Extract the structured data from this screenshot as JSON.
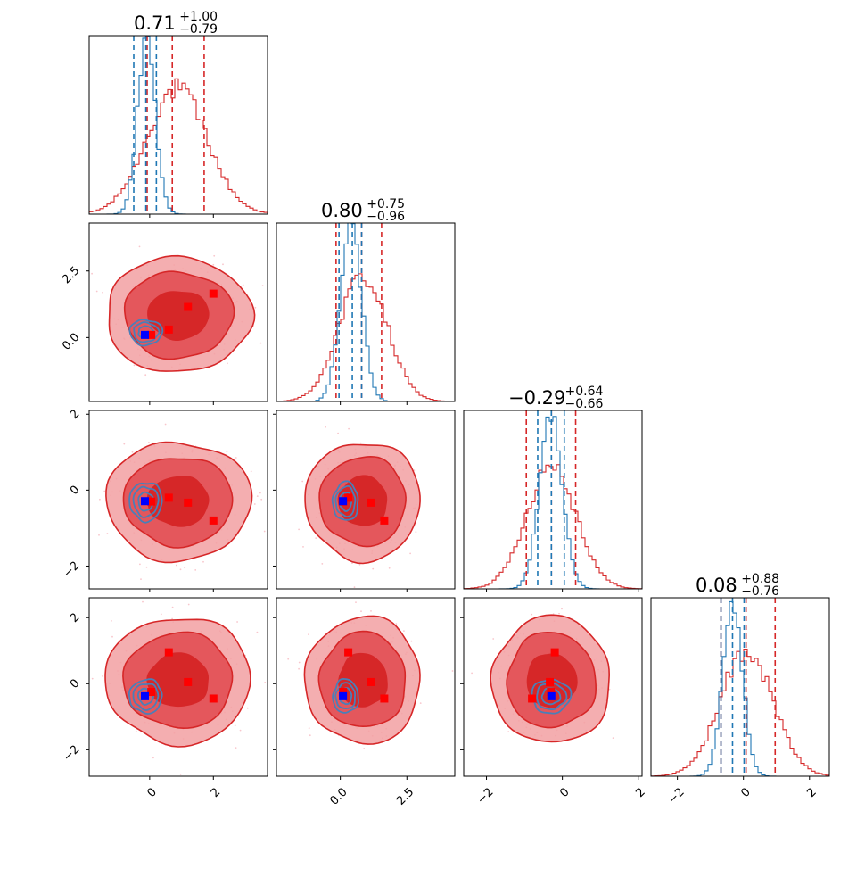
{
  "colors": {
    "red": "#d62728",
    "red_light": "#f2a0a2",
    "blue": "#1f77b4",
    "marker_red": "#ff0000",
    "marker_blue": "#0000ff",
    "scatter": "#f6b8bf"
  },
  "titles": [
    {
      "main": "0.71",
      "sup": "+1.00",
      "sub": "−0.79"
    },
    {
      "main": "0.80",
      "sup": "+0.75",
      "sub": "−0.96"
    },
    {
      "main": "−0.29",
      "sup": "+0.64",
      "sub": "−0.66"
    },
    {
      "main": "0.08",
      "sup": "+0.88",
      "sub": "−0.76"
    }
  ],
  "chart_data": {
    "type": "corner",
    "parameters": 4,
    "ranges": [
      [
        -1.9,
        3.7
      ],
      [
        -2.4,
        4.3
      ],
      [
        -2.6,
        2.1
      ],
      [
        -2.8,
        2.6
      ]
    ],
    "ticks": [
      {
        "values": [
          0,
          2
        ],
        "labels": [
          "0",
          "2"
        ]
      },
      {
        "values": [
          0,
          2.5
        ],
        "labels": [
          "0.0",
          "2.5"
        ]
      },
      {
        "values": [
          -2,
          0,
          2
        ],
        "labels": [
          "−2",
          "0",
          "2"
        ]
      },
      {
        "values": [
          -2,
          0,
          2
        ],
        "labels": [
          "−2",
          "0",
          "2"
        ]
      }
    ],
    "quantile_lines": {
      "red": [
        [
          -0.08,
          0.71,
          1.71
        ],
        [
          -0.16,
          0.8,
          1.55
        ],
        [
          -0.95,
          -0.29,
          0.35
        ],
        [
          -0.68,
          0.08,
          0.96
        ]
      ],
      "blue": [
        [
          -0.5,
          -0.12,
          0.21
        ],
        [
          -0.05,
          0.45,
          0.8
        ],
        [
          -0.65,
          -0.29,
          0.05
        ],
        [
          -0.68,
          -0.33,
          0.02
        ]
      ]
    },
    "marginals": {
      "red": [
        {
          "mu": 0.9,
          "sigma": 0.95
        },
        {
          "mu": 0.85,
          "sigma": 0.9
        },
        {
          "mu": -0.29,
          "sigma": 0.65
        },
        {
          "mu": 0.1,
          "sigma": 0.8
        }
      ],
      "blue": [
        {
          "mu": -0.1,
          "sigma": 0.28
        },
        {
          "mu": 0.4,
          "sigma": 0.4
        },
        {
          "mu": -0.3,
          "sigma": 0.3
        },
        {
          "mu": -0.33,
          "sigma": 0.3
        }
      ]
    },
    "markers": {
      "red": [
        [
          0.05,
          0.1,
          -0.3,
          -0.25
        ],
        [
          0.6,
          0.3,
          -0.2,
          0.95
        ],
        [
          1.2,
          1.15,
          -0.33,
          0.05
        ],
        [
          2.0,
          1.65,
          -0.8,
          -0.45
        ]
      ],
      "blue": [
        -0.15,
        0.1,
        -0.29,
        -0.38
      ]
    },
    "contours_2d": {
      "red": {
        "mu": [
          0.9,
          0.85,
          -0.29,
          0.1
        ],
        "sigma": [
          0.95,
          0.9,
          0.65,
          0.8
        ],
        "levels": [
          1.0,
          1.8,
          2.4
        ]
      },
      "blue": {
        "mu": [
          -0.12,
          0.2,
          -0.3,
          -0.38
        ],
        "sigma": [
          0.3,
          0.28,
          0.3,
          0.3
        ],
        "levels": [
          0.8,
          1.3,
          1.7
        ]
      }
    }
  }
}
